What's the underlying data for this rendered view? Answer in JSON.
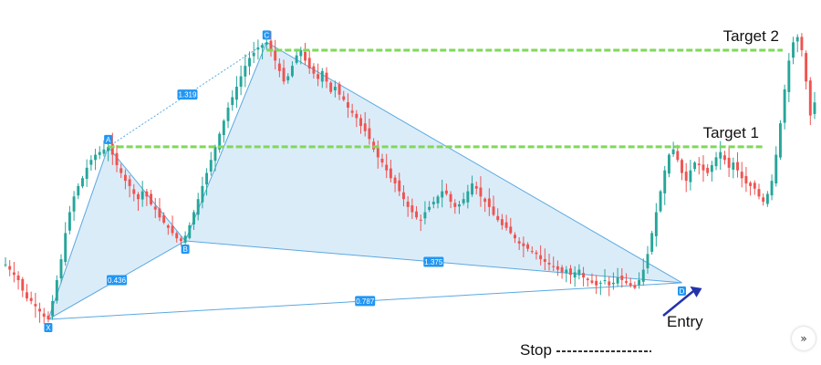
{
  "chart_data": {
    "type": "candlestick",
    "pattern": "harmonic XABCD",
    "colors": {
      "up": "#26a69a",
      "down": "#ef5350",
      "pattern_fill": "#cfe6f7",
      "pattern_line": "#5aa9e0",
      "target_line": "#7ed957",
      "label_bg": "#2196f3",
      "arrow": "#2233aa"
    },
    "points": [
      {
        "name": "X",
        "index": 10,
        "price": 47
      },
      {
        "name": "A",
        "index": 24,
        "price": 113
      },
      {
        "name": "B",
        "index": 42,
        "price": 77
      },
      {
        "name": "C",
        "index": 61,
        "price": 153
      },
      {
        "name": "D",
        "index": 158,
        "price": 61
      }
    ],
    "ratios": [
      {
        "label": "1.319",
        "from": "A",
        "to": "C"
      },
      {
        "label": "0.436",
        "from": "X",
        "to": "B"
      },
      {
        "label": "1.375",
        "from": "B",
        "to": "D"
      },
      {
        "label": "0.787",
        "from": "X",
        "to": "D"
      }
    ],
    "targets": [
      {
        "label": "Target 2",
        "price": 150
      },
      {
        "label": "Target 1",
        "price": 113
      }
    ],
    "entry_label": "Entry",
    "stop_label": "Stop",
    "closes": [
      68,
      66,
      64,
      62,
      58,
      55,
      54,
      52,
      50,
      48,
      47,
      54,
      62,
      70,
      80,
      88,
      94,
      98,
      101,
      105,
      108,
      110,
      111,
      112,
      113,
      110,
      106,
      103,
      100,
      98,
      95,
      93,
      96,
      94,
      91,
      89,
      86,
      84,
      82,
      80,
      78,
      77,
      79,
      83,
      88,
      93,
      98,
      103,
      108,
      113,
      118,
      123,
      128,
      132,
      136,
      140,
      144,
      147,
      149,
      151,
      152,
      153,
      150,
      146,
      142,
      138,
      140,
      144,
      148,
      150,
      146,
      143,
      141,
      139,
      142,
      138,
      134,
      136,
      133,
      131,
      128,
      126,
      124,
      121,
      119,
      116,
      112,
      109,
      107,
      104,
      101,
      99,
      96,
      93,
      90,
      88,
      86,
      85,
      88,
      90,
      92,
      94,
      96,
      95,
      92,
      90,
      91,
      93,
      96,
      99,
      97,
      94,
      92,
      90,
      87,
      85,
      83,
      82,
      80,
      78,
      76,
      75,
      74,
      73,
      72,
      70,
      69,
      68,
      67,
      66,
      65,
      66,
      64,
      65,
      66,
      63,
      62,
      61,
      60,
      61,
      62,
      60,
      61,
      63,
      62,
      61,
      60,
      59,
      62,
      66,
      72,
      80,
      88,
      96,
      104,
      110,
      112,
      108,
      103,
      100,
      104,
      107,
      106,
      104,
      103,
      106,
      109,
      111,
      108,
      105,
      107,
      104,
      101,
      99,
      98,
      97,
      94,
      92,
      95,
      100,
      110,
      122,
      135,
      146,
      153,
      155,
      150,
      138,
      125,
      130
    ]
  }
}
